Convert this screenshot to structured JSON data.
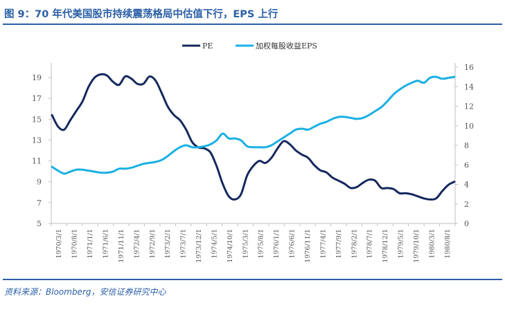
{
  "title": "图 9：70 年代美国股市持续震荡格局中估值下行，EPS 上行",
  "source": "资料来源：Bloomberg，安信证券研究中心",
  "colors": {
    "pe": "#14285e",
    "eps": "#19b0e3",
    "accent": "#2b5fa6"
  },
  "chart_data": {
    "type": "line",
    "x_labels": [
      "1970/3/1",
      "1970/8/1",
      "1971/1/1",
      "1971/6/1",
      "1971/11/1",
      "1972/4/1",
      "1972/9/1",
      "1973/2/1",
      "1973/7/1",
      "1973/12/1",
      "1974/5/1",
      "1974/10/1",
      "1975/3/1",
      "1975/8/1",
      "1976/1/1",
      "1976/6/1",
      "1976/11/1",
      "1977/4/1",
      "1977/9/1",
      "1978/2/1",
      "1978/7/1",
      "1978/12/1",
      "1979/5/1",
      "1979/10/1",
      "1980/3/1",
      "1980/8/1"
    ],
    "y_left": {
      "ticks": [
        "5",
        "7",
        "9",
        "11",
        "13",
        "15",
        "17",
        "19"
      ],
      "range": [
        5,
        20
      ]
    },
    "y_right": {
      "ticks": [
        "0",
        "2",
        "4",
        "6",
        "8",
        "10",
        "12",
        "14",
        "16"
      ],
      "range": [
        0,
        16
      ]
    },
    "legend": [
      "PE",
      "加权每股收益EPS"
    ],
    "legend_position": "top-center",
    "series": [
      {
        "name": "PE",
        "axis": "left",
        "values": [
          15.4,
          14.3,
          14.0,
          14.9,
          15.8,
          16.7,
          18.1,
          19.0,
          19.3,
          19.2,
          18.6,
          18.3,
          19.1,
          18.9,
          18.4,
          18.4,
          19.1,
          18.7,
          17.5,
          16.2,
          15.4,
          14.9,
          14.0,
          12.8,
          12.3,
          12.2,
          11.8,
          10.5,
          8.8,
          7.6,
          7.3,
          7.8,
          9.6,
          10.5,
          11.0,
          10.8,
          11.3,
          12.2,
          12.9,
          12.6,
          12.0,
          11.6,
          11.3,
          10.6,
          10.1,
          9.9,
          9.4,
          9.1,
          8.8,
          8.4,
          8.5,
          8.9,
          9.2,
          9.1,
          8.4,
          8.4,
          8.3,
          7.9,
          7.9,
          7.8,
          7.6,
          7.4,
          7.3,
          7.4,
          8.1,
          8.7,
          9.0
        ]
      },
      {
        "name": "加权每股收益EPS",
        "axis": "right",
        "values": [
          5.8,
          5.4,
          5.1,
          5.3,
          5.5,
          5.5,
          5.4,
          5.3,
          5.2,
          5.2,
          5.3,
          5.6,
          5.6,
          5.7,
          5.9,
          6.1,
          6.2,
          6.3,
          6.5,
          6.9,
          7.4,
          7.8,
          8.0,
          7.8,
          7.8,
          7.9,
          8.1,
          8.5,
          9.2,
          8.7,
          8.7,
          8.5,
          7.9,
          7.8,
          7.8,
          7.8,
          8.0,
          8.4,
          8.8,
          9.2,
          9.6,
          9.7,
          9.6,
          9.9,
          10.2,
          10.4,
          10.7,
          10.9,
          10.9,
          10.8,
          10.7,
          10.8,
          11.1,
          11.5,
          11.9,
          12.5,
          13.2,
          13.7,
          14.1,
          14.4,
          14.6,
          14.4,
          14.9,
          15.0,
          14.8,
          14.9,
          15.0
        ]
      }
    ]
  }
}
